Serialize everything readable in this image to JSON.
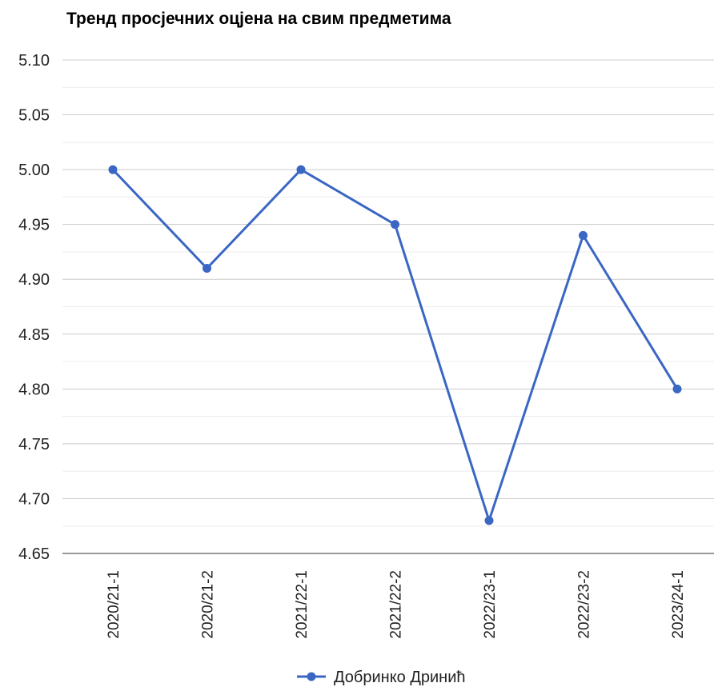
{
  "chart_data": {
    "type": "line",
    "title": "Тренд просјечних оцјена на свим предметима",
    "xlabel": "",
    "ylabel": "",
    "categories": [
      "2020/21-1",
      "2020/21-2",
      "2021/22-1",
      "2021/22-2",
      "2022/23-1",
      "2022/23-2",
      "2023/24-1"
    ],
    "series": [
      {
        "name": "Добринко Дринић",
        "color": "#3a66c4",
        "values": [
          5.0,
          4.91,
          5.0,
          4.95,
          4.68,
          4.94,
          4.8
        ]
      }
    ],
    "ylim": [
      4.65,
      5.1
    ],
    "yticks": [
      "5.10",
      "5.05",
      "5.00",
      "4.95",
      "4.90",
      "4.85",
      "4.80",
      "4.75",
      "4.70",
      "4.65"
    ],
    "grid": true,
    "legend_position": "bottom"
  }
}
